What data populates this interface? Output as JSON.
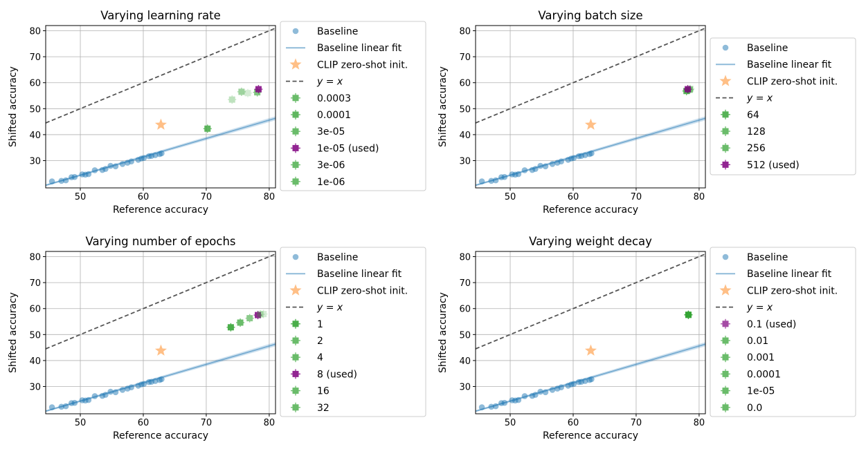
{
  "colors": {
    "baseline": "#1f77b4",
    "fit": "#1f77b4",
    "star": "#ff7f0e",
    "diag": "#555555",
    "used": "#800080",
    "green": "#2ca02c"
  },
  "chart_data": [
    {
      "type": "scatter",
      "title": "Varying learning rate",
      "xlabel": "Reference accuracy",
      "ylabel": "Shifted accuracy",
      "xlim": [
        44.5,
        81
      ],
      "ylim": [
        19.5,
        82
      ],
      "xticks": [
        50,
        60,
        70,
        80
      ],
      "yticks": [
        30,
        40,
        50,
        60,
        70,
        80
      ],
      "grid": true,
      "legend_loc": "outside-right",
      "baseline_label": "Baseline",
      "fit_label": "Baseline linear fit",
      "star_label": "CLIP zero-shot init.",
      "diag_label": "y = x",
      "baseline": {
        "x": [
          45.5,
          47.0,
          47.7,
          48.6,
          49.1,
          50.3,
          50.8,
          51.3,
          52.3,
          53.5,
          54.0,
          54.8,
          55.6,
          56.7,
          57.5,
          58.1,
          59.2,
          59.7,
          60.1,
          60.9,
          61.3,
          61.9,
          62.6,
          62.9
        ],
        "y": [
          22.0,
          22.2,
          22.4,
          23.6,
          23.7,
          24.7,
          24.6,
          24.8,
          26.3,
          26.4,
          26.8,
          28.0,
          27.8,
          28.7,
          29.2,
          29.7,
          30.3,
          30.8,
          31.0,
          31.7,
          31.8,
          32.1,
          32.5,
          32.8
        ]
      },
      "fit": {
        "x": [
          44.5,
          81
        ],
        "y": [
          20.5,
          46.3
        ]
      },
      "star": {
        "x": 62.8,
        "y": 43.8
      },
      "series": [
        {
          "name": "0.0003",
          "x": 75.6,
          "y": 56.5,
          "color": "#2ca02c",
          "alpha": 0.45
        },
        {
          "name": "0.0001",
          "x": 70.2,
          "y": 42.3,
          "color": "#2ca02c",
          "alpha": 0.75
        },
        {
          "name": "3e-05",
          "x": 78.1,
          "y": 56.3,
          "color": "#2ca02c",
          "alpha": 0.6
        },
        {
          "name": "1e-05 (used)",
          "x": 78.3,
          "y": 57.5,
          "color": "#800080",
          "alpha": 0.85
        },
        {
          "name": "3e-06",
          "x": 74.1,
          "y": 53.5,
          "color": "#2ca02c",
          "alpha": 0.3
        },
        {
          "name": "1e-06",
          "x": 76.6,
          "y": 56.0,
          "color": "#2ca02c",
          "alpha": 0.2
        }
      ]
    },
    {
      "type": "scatter",
      "title": "Varying batch size",
      "xlabel": "Reference accuracy",
      "ylabel": "Shifted accuracy",
      "xlim": [
        44.5,
        81
      ],
      "ylim": [
        19.5,
        82
      ],
      "xticks": [
        50,
        60,
        70,
        80
      ],
      "yticks": [
        30,
        40,
        50,
        60,
        70,
        80
      ],
      "grid": true,
      "legend_loc": "outside-right",
      "baseline_label": "Baseline",
      "fit_label": "Baseline linear fit",
      "star_label": "CLIP zero-shot init.",
      "diag_label": "y = x",
      "baseline": {
        "x": [
          45.5,
          47.0,
          47.7,
          48.6,
          49.1,
          50.3,
          50.8,
          51.3,
          52.3,
          53.5,
          54.0,
          54.8,
          55.6,
          56.7,
          57.5,
          58.1,
          59.2,
          59.7,
          60.1,
          60.9,
          61.3,
          61.9,
          62.6,
          62.9
        ],
        "y": [
          22.0,
          22.2,
          22.4,
          23.6,
          23.7,
          24.7,
          24.6,
          24.8,
          26.3,
          26.4,
          26.8,
          28.0,
          27.8,
          28.7,
          29.2,
          29.7,
          30.3,
          30.8,
          31.0,
          31.7,
          31.8,
          32.1,
          32.5,
          32.8
        ]
      },
      "fit": {
        "x": [
          44.5,
          81
        ],
        "y": [
          20.5,
          46.3
        ]
      },
      "star": {
        "x": 62.8,
        "y": 43.8
      },
      "series": [
        {
          "name": "64",
          "x": 78.0,
          "y": 56.8,
          "color": "#2ca02c",
          "alpha": 0.8
        },
        {
          "name": "128",
          "x": 78.5,
          "y": 57.3,
          "color": "#2ca02c",
          "alpha": 0.55
        },
        {
          "name": "256",
          "x": 78.6,
          "y": 57.6,
          "color": "#2ca02c",
          "alpha": 0.3
        },
        {
          "name": "512 (used)",
          "x": 78.2,
          "y": 57.5,
          "color": "#800080",
          "alpha": 0.85
        }
      ]
    },
    {
      "type": "scatter",
      "title": "Varying number of epochs",
      "xlabel": "Reference accuracy",
      "ylabel": "Shifted accuracy",
      "xlim": [
        44.5,
        81
      ],
      "ylim": [
        19.5,
        82
      ],
      "xticks": [
        50,
        60,
        70,
        80
      ],
      "yticks": [
        30,
        40,
        50,
        60,
        70,
        80
      ],
      "grid": true,
      "legend_loc": "outside-right",
      "baseline_label": "Baseline",
      "fit_label": "Baseline linear fit",
      "star_label": "CLIP zero-shot init.",
      "diag_label": "y = x",
      "baseline": {
        "x": [
          45.5,
          47.0,
          47.7,
          48.6,
          49.1,
          50.3,
          50.8,
          51.3,
          52.3,
          53.5,
          54.0,
          54.8,
          55.6,
          56.7,
          57.5,
          58.1,
          59.2,
          59.7,
          60.1,
          60.9,
          61.3,
          61.9,
          62.6,
          62.9
        ],
        "y": [
          22.0,
          22.2,
          22.4,
          23.6,
          23.7,
          24.7,
          24.6,
          24.8,
          26.3,
          26.4,
          26.8,
          28.0,
          27.8,
          28.7,
          29.2,
          29.7,
          30.3,
          30.8,
          31.0,
          31.7,
          31.8,
          32.1,
          32.5,
          32.8
        ]
      },
      "fit": {
        "x": [
          44.5,
          81
        ],
        "y": [
          20.5,
          46.3
        ]
      },
      "star": {
        "x": 62.8,
        "y": 43.8
      },
      "series": [
        {
          "name": "1",
          "x": 73.9,
          "y": 52.8,
          "color": "#2ca02c",
          "alpha": 0.85
        },
        {
          "name": "2",
          "x": 75.4,
          "y": 54.6,
          "color": "#2ca02c",
          "alpha": 0.7
        },
        {
          "name": "4",
          "x": 76.9,
          "y": 56.3,
          "color": "#2ca02c",
          "alpha": 0.55
        },
        {
          "name": "8 (used)",
          "x": 78.2,
          "y": 57.5,
          "color": "#800080",
          "alpha": 0.85
        },
        {
          "name": "16",
          "x": 78.6,
          "y": 57.8,
          "color": "#2ca02c",
          "alpha": 0.3
        },
        {
          "name": "32",
          "x": 79.1,
          "y": 57.9,
          "color": "#2ca02c",
          "alpha": 0.2
        }
      ]
    },
    {
      "type": "scatter",
      "title": "Varying weight decay",
      "xlabel": "Reference accuracy",
      "ylabel": "Shifted accuracy",
      "xlim": [
        44.5,
        81
      ],
      "ylim": [
        19.5,
        82
      ],
      "xticks": [
        50,
        60,
        70,
        80
      ],
      "yticks": [
        30,
        40,
        50,
        60,
        70,
        80
      ],
      "grid": true,
      "legend_loc": "outside-right",
      "baseline_label": "Baseline",
      "fit_label": "Baseline linear fit",
      "star_label": "CLIP zero-shot init.",
      "diag_label": "y = x",
      "baseline": {
        "x": [
          45.5,
          47.0,
          47.7,
          48.6,
          49.1,
          50.3,
          50.8,
          51.3,
          52.3,
          53.5,
          54.0,
          54.8,
          55.6,
          56.7,
          57.5,
          58.1,
          59.2,
          59.7,
          60.1,
          60.9,
          61.3,
          61.9,
          62.6,
          62.9
        ],
        "y": [
          22.0,
          22.2,
          22.4,
          23.6,
          23.7,
          24.7,
          24.6,
          24.8,
          26.3,
          26.4,
          26.8,
          28.0,
          27.8,
          28.7,
          29.2,
          29.7,
          30.3,
          30.8,
          31.0,
          31.7,
          31.8,
          32.1,
          32.5,
          32.8
        ]
      },
      "fit": {
        "x": [
          44.5,
          81
        ],
        "y": [
          20.5,
          46.3
        ]
      },
      "star": {
        "x": 62.8,
        "y": 43.8
      },
      "series": [
        {
          "name": "0.1 (used)",
          "x": 78.3,
          "y": 57.6,
          "color": "#800080",
          "alpha": 0.0
        },
        {
          "name": "0.01",
          "x": 78.3,
          "y": 57.6,
          "color": "#2ca02c",
          "alpha": 0.7
        },
        {
          "name": "0.001",
          "x": 78.3,
          "y": 57.6,
          "color": "#2ca02c",
          "alpha": 0.55
        },
        {
          "name": "0.0001",
          "x": 78.3,
          "y": 57.6,
          "color": "#2ca02c",
          "alpha": 0.4
        },
        {
          "name": "1e-05",
          "x": 78.3,
          "y": 57.6,
          "color": "#2ca02c",
          "alpha": 0.25
        },
        {
          "name": "0.0",
          "x": 78.3,
          "y": 57.6,
          "color": "#2ca02c",
          "alpha": 0.15
        }
      ]
    }
  ]
}
